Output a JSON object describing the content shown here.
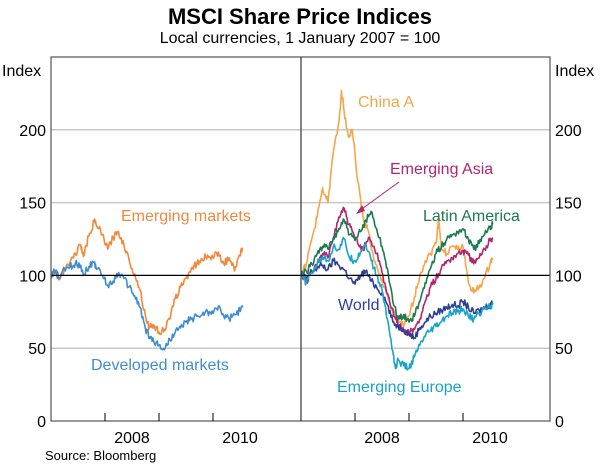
{
  "title": "MSCI Share Price Indices",
  "subtitle": "Local currencies, 1 January 2007 = 100",
  "source": "Source: Bloomberg",
  "chart_data": [
    {
      "type": "line",
      "panel": "left",
      "ylabel": "Index",
      "ylim": [
        0,
        250
      ],
      "yticks": [
        0,
        50,
        100,
        150,
        200
      ],
      "xlim": [
        2007.0,
        2010.6
      ],
      "xtick_labels": [
        "2008",
        "2010"
      ],
      "reference_line": 100,
      "grid": true,
      "series": [
        {
          "name": "Emerging markets",
          "color": "#F0883E",
          "x": [
            2007.0,
            2007.08,
            2007.15,
            2007.25,
            2007.35,
            2007.45,
            2007.55,
            2007.6,
            2007.7,
            2007.8,
            2007.85,
            2007.95,
            2008.05,
            2008.15,
            2008.25,
            2008.35,
            2008.45,
            2008.55,
            2008.65,
            2008.75,
            2008.82,
            2008.9,
            2009.0,
            2009.1,
            2009.2,
            2009.3,
            2009.4,
            2009.5,
            2009.6,
            2009.7,
            2009.8,
            2009.9,
            2010.0,
            2010.1,
            2010.2,
            2010.3,
            2010.4,
            2010.5,
            2010.55
          ],
          "values": [
            100,
            103,
            97,
            105,
            109,
            115,
            121,
            113,
            127,
            137,
            134,
            128,
            118,
            126,
            130,
            121,
            110,
            101,
            90,
            72,
            64,
            66,
            61,
            63,
            70,
            84,
            92,
            98,
            105,
            108,
            111,
            114,
            112,
            116,
            108,
            112,
            103,
            114,
            119
          ]
        },
        {
          "name": "Developed markets",
          "color": "#3F8DD0",
          "x": [
            2007.0,
            2007.08,
            2007.15,
            2007.25,
            2007.35,
            2007.45,
            2007.55,
            2007.6,
            2007.7,
            2007.8,
            2007.85,
            2007.95,
            2008.05,
            2008.15,
            2008.25,
            2008.35,
            2008.45,
            2008.55,
            2008.65,
            2008.75,
            2008.82,
            2008.9,
            2009.0,
            2009.1,
            2009.2,
            2009.3,
            2009.4,
            2009.5,
            2009.6,
            2009.7,
            2009.8,
            2009.9,
            2010.0,
            2010.1,
            2010.2,
            2010.3,
            2010.4,
            2010.5,
            2010.55
          ],
          "values": [
            100,
            103,
            98,
            104,
            106,
            108,
            107,
            101,
            106,
            109,
            105,
            100,
            93,
            96,
            102,
            98,
            92,
            86,
            78,
            63,
            58,
            55,
            52,
            49,
            56,
            61,
            64,
            68,
            70,
            72,
            73,
            75,
            74,
            79,
            72,
            70,
            73,
            76,
            78
          ]
        }
      ],
      "annotations": [
        {
          "text": "Emerging markets",
          "color": "#F0883E"
        },
        {
          "text": "Developed markets",
          "color": "#3F8DD0"
        }
      ]
    },
    {
      "type": "line",
      "panel": "right",
      "ylabel": "Index",
      "ylim": [
        0,
        250
      ],
      "yticks": [
        0,
        50,
        100,
        150,
        200
      ],
      "xlim": [
        2007.0,
        2010.6
      ],
      "xtick_labels": [
        "2008",
        "2010"
      ],
      "reference_line": 100,
      "grid": true,
      "series": [
        {
          "name": "China A",
          "color": "#F5A54A",
          "x": [
            2007.0,
            2007.1,
            2007.2,
            2007.3,
            2007.4,
            2007.5,
            2007.6,
            2007.7,
            2007.75,
            2007.8,
            2007.88,
            2007.95,
            2008.05,
            2008.15,
            2008.25,
            2008.35,
            2008.45,
            2008.55,
            2008.65,
            2008.75,
            2008.82,
            2008.9,
            2009.0,
            2009.1,
            2009.2,
            2009.3,
            2009.4,
            2009.5,
            2009.55,
            2009.6,
            2009.7,
            2009.8,
            2009.9,
            2010.0,
            2010.1,
            2010.2,
            2010.3,
            2010.4,
            2010.5,
            2010.55
          ],
          "values": [
            100,
            108,
            125,
            140,
            160,
            150,
            185,
            205,
            227,
            212,
            195,
            200,
            165,
            140,
            130,
            110,
            100,
            92,
            80,
            72,
            68,
            65,
            72,
            85,
            100,
            110,
            115,
            122,
            140,
            118,
            115,
            120,
            118,
            120,
            95,
            88,
            92,
            98,
            108,
            112
          ]
        },
        {
          "name": "Emerging Asia",
          "color": "#B5256E",
          "x": [
            2007.0,
            2007.1,
            2007.2,
            2007.3,
            2007.4,
            2007.5,
            2007.6,
            2007.7,
            2007.8,
            2007.88,
            2007.95,
            2008.05,
            2008.15,
            2008.25,
            2008.35,
            2008.45,
            2008.55,
            2008.65,
            2008.75,
            2008.82,
            2008.9,
            2009.0,
            2009.1,
            2009.2,
            2009.3,
            2009.4,
            2009.5,
            2009.6,
            2009.7,
            2009.8,
            2009.9,
            2010.0,
            2010.1,
            2010.2,
            2010.3,
            2010.4,
            2010.5,
            2010.55
          ],
          "values": [
            100,
            96,
            103,
            108,
            115,
            112,
            126,
            140,
            146,
            135,
            130,
            122,
            118,
            126,
            120,
            110,
            95,
            80,
            70,
            66,
            62,
            60,
            63,
            70,
            82,
            92,
            98,
            105,
            110,
            112,
            115,
            117,
            114,
            108,
            112,
            118,
            124,
            126
          ]
        },
        {
          "name": "Latin America",
          "color": "#1B7A50",
          "x": [
            2007.0,
            2007.1,
            2007.2,
            2007.3,
            2007.4,
            2007.5,
            2007.6,
            2007.7,
            2007.8,
            2007.9,
            2008.0,
            2008.1,
            2008.2,
            2008.3,
            2008.4,
            2008.5,
            2008.6,
            2008.7,
            2008.8,
            2008.9,
            2009.0,
            2009.1,
            2009.2,
            2009.3,
            2009.4,
            2009.5,
            2009.6,
            2009.7,
            2009.8,
            2009.9,
            2010.0,
            2010.1,
            2010.2,
            2010.3,
            2010.4,
            2010.5,
            2010.55
          ],
          "values": [
            100,
            103,
            108,
            115,
            120,
            118,
            125,
            132,
            138,
            128,
            124,
            130,
            138,
            144,
            132,
            120,
            105,
            82,
            70,
            73,
            68,
            72,
            82,
            95,
            105,
            115,
            120,
            125,
            128,
            130,
            132,
            125,
            118,
            122,
            128,
            133,
            135
          ]
        },
        {
          "name": "World",
          "color": "#2E3E9A",
          "x": [
            2007.0,
            2007.1,
            2007.2,
            2007.3,
            2007.4,
            2007.5,
            2007.6,
            2007.7,
            2007.8,
            2007.9,
            2008.0,
            2008.1,
            2008.2,
            2008.3,
            2008.4,
            2008.5,
            2008.6,
            2008.7,
            2008.8,
            2008.9,
            2009.0,
            2009.1,
            2009.2,
            2009.3,
            2009.4,
            2009.5,
            2009.6,
            2009.7,
            2009.8,
            2009.9,
            2010.0,
            2010.1,
            2010.2,
            2010.3,
            2010.4,
            2010.5,
            2010.55
          ],
          "values": [
            100,
            98,
            103,
            105,
            107,
            104,
            110,
            107,
            104,
            98,
            94,
            100,
            103,
            96,
            92,
            88,
            80,
            68,
            65,
            63,
            60,
            57,
            64,
            68,
            72,
            74,
            76,
            78,
            80,
            79,
            82,
            78,
            74,
            76,
            78,
            80,
            81
          ]
        },
        {
          "name": "Emerging Europe",
          "color": "#1AA3C8",
          "x": [
            2007.0,
            2007.1,
            2007.2,
            2007.3,
            2007.4,
            2007.5,
            2007.6,
            2007.7,
            2007.8,
            2007.9,
            2008.0,
            2008.1,
            2008.2,
            2008.3,
            2008.4,
            2008.5,
            2008.6,
            2008.7,
            2008.75,
            2008.8,
            2008.9,
            2009.0,
            2009.1,
            2009.2,
            2009.3,
            2009.4,
            2009.5,
            2009.6,
            2009.7,
            2009.8,
            2009.9,
            2010.0,
            2010.1,
            2010.2,
            2010.3,
            2010.4,
            2010.5,
            2010.55
          ],
          "values": [
            100,
            95,
            102,
            108,
            113,
            110,
            120,
            118,
            125,
            112,
            110,
            116,
            122,
            110,
            100,
            90,
            70,
            48,
            36,
            42,
            38,
            36,
            44,
            52,
            58,
            62,
            65,
            68,
            72,
            74,
            75,
            77,
            72,
            70,
            74,
            77,
            79,
            80
          ]
        }
      ],
      "annotations": [
        {
          "text": "China A",
          "color": "#F5A54A"
        },
        {
          "text": "Emerging Asia",
          "color": "#B5256E",
          "arrow": true
        },
        {
          "text": "Latin America",
          "color": "#1B7A50"
        },
        {
          "text": "World",
          "color": "#2E3E9A"
        },
        {
          "text": "Emerging Europe",
          "color": "#1AA3C8"
        }
      ]
    }
  ]
}
